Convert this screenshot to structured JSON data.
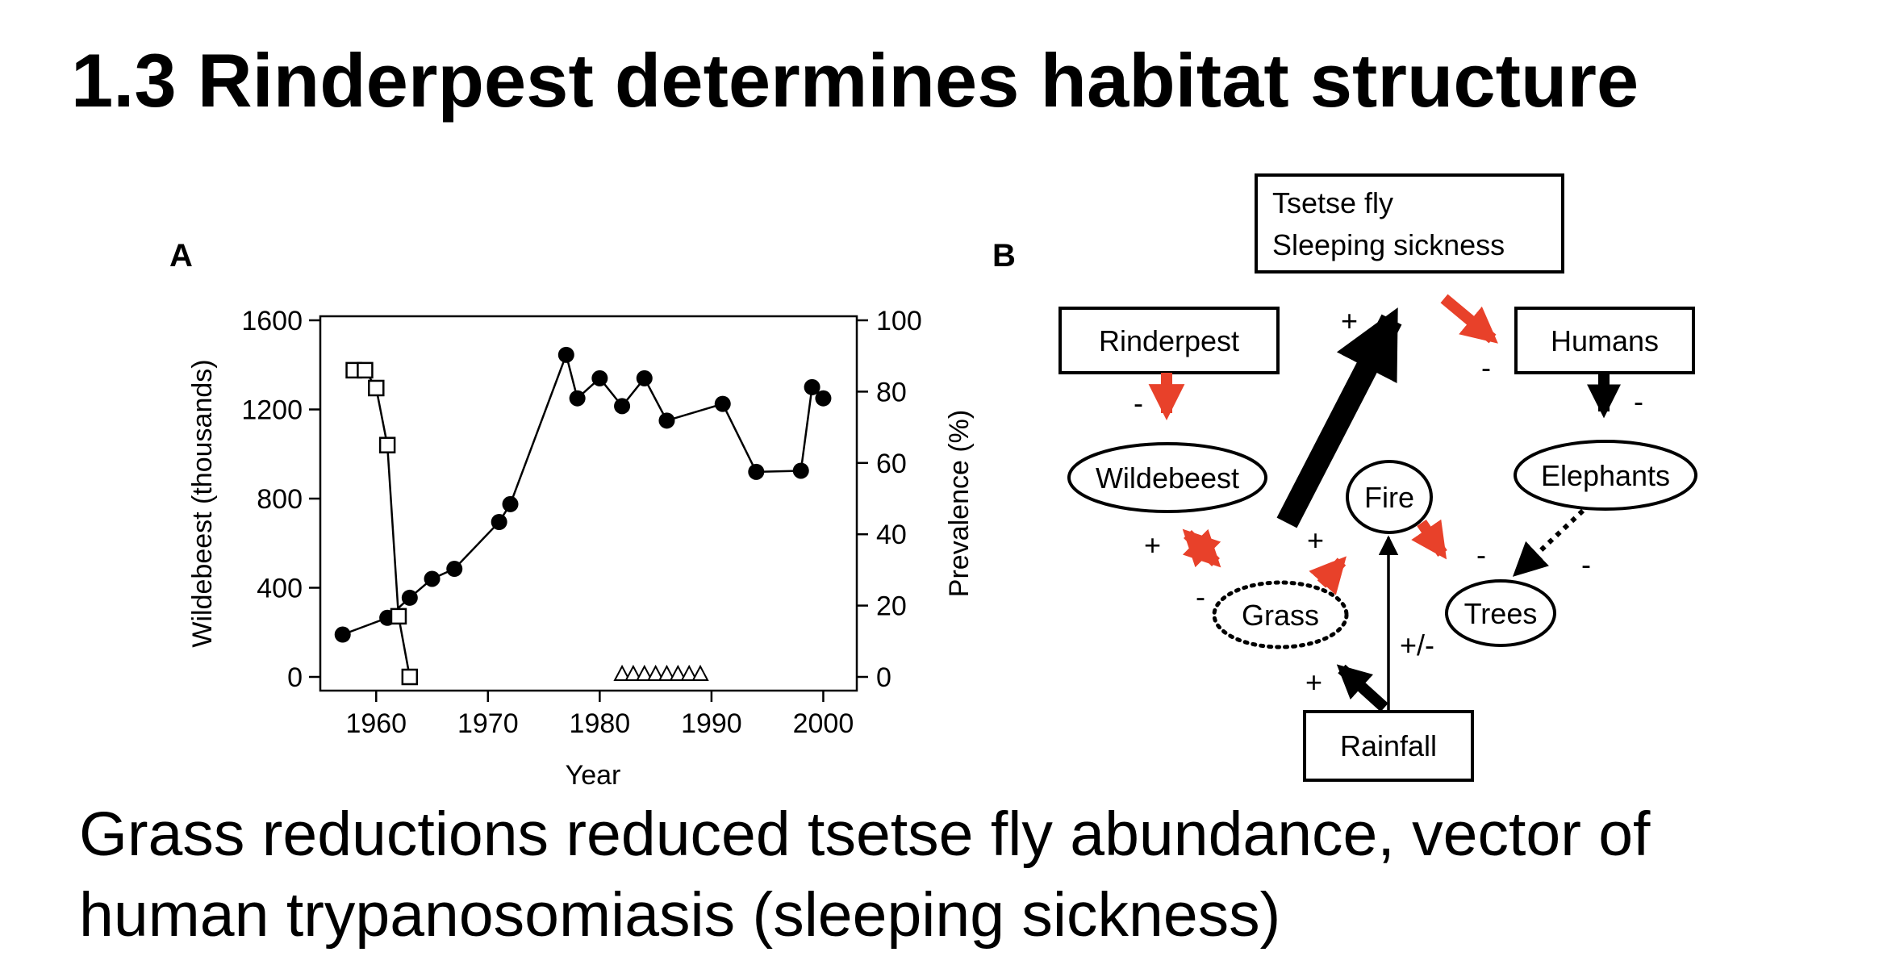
{
  "slide": {
    "title": "1.3 Rinderpest determines habitat structure",
    "caption_line1": "Grass reductions reduced tsetse fly abundance, vector of",
    "caption_line2": "human trypanosomiasis (sleeping sickness)"
  },
  "chart_data": {
    "type": "scatter",
    "panel_label": "A",
    "xlabel": "Year",
    "ylabel_left": "Wildebeest (thousands)",
    "ylabel_right": "Prevalence (%)",
    "xlim": [
      1955,
      2003
    ],
    "ylim_left": [
      0,
      1600
    ],
    "ylim_right": [
      0,
      100
    ],
    "x_ticks": [
      1960,
      1970,
      1980,
      1990,
      2000
    ],
    "y_ticks_left": [
      0,
      400,
      800,
      1200,
      1600
    ],
    "y_ticks_right": [
      0,
      20,
      40,
      60,
      80,
      100
    ],
    "grid": false,
    "series": [
      {
        "axis": "left",
        "marker": "filled-circle",
        "connected": true,
        "x": [
          1957,
          1961,
          1963,
          1965,
          1967,
          1971,
          1972,
          1977,
          1978,
          1980,
          1982,
          1984,
          1986,
          1991,
          1994,
          1998,
          1999,
          2000
        ],
        "y": [
          190,
          265,
          355,
          440,
          485,
          695,
          775,
          1445,
          1250,
          1340,
          1215,
          1340,
          1150,
          1225,
          920,
          925,
          1300,
          1250
        ]
      },
      {
        "axis": "right",
        "marker": "open-square",
        "connected": true,
        "x": [
          1958,
          1959,
          1960,
          1961,
          1962,
          1963
        ],
        "y": [
          86,
          86,
          81,
          65,
          17,
          0
        ]
      },
      {
        "axis": "right",
        "marker": "open-triangle",
        "connected": false,
        "x": [
          1982,
          1983,
          1984,
          1985,
          1986,
          1987,
          1988,
          1989
        ],
        "y": [
          0,
          0,
          0,
          0,
          0,
          0,
          0,
          0
        ]
      }
    ]
  },
  "diagram": {
    "panel_label": "B",
    "colors": {
      "red": "#e8412a",
      "black": "#000000"
    },
    "nodes": {
      "tsetse_line1": "Tsetse fly",
      "tsetse_line2": "Sleeping sickness",
      "rinderpest": "Rinderpest",
      "humans": "Humans",
      "wildebeest": "Wildebeest",
      "fire": "Fire",
      "elephants": "Elephants",
      "grass": "Grass",
      "trees": "Trees",
      "rainfall": "Rainfall"
    },
    "signs": {
      "grass_to_tsetse": "+",
      "tsetse_to_humans": "-",
      "rinderpest_to_wildebeest": "-",
      "humans_to_elephants": "-",
      "wildebeest_to_grass": "+",
      "grass_to_wildebeest": "-",
      "grass_to_fire": "+",
      "fire_to_trees": "-",
      "elephants_to_trees": "-",
      "rainfall_to_grass": "+",
      "rainfall_to_fire": "+/-"
    }
  }
}
